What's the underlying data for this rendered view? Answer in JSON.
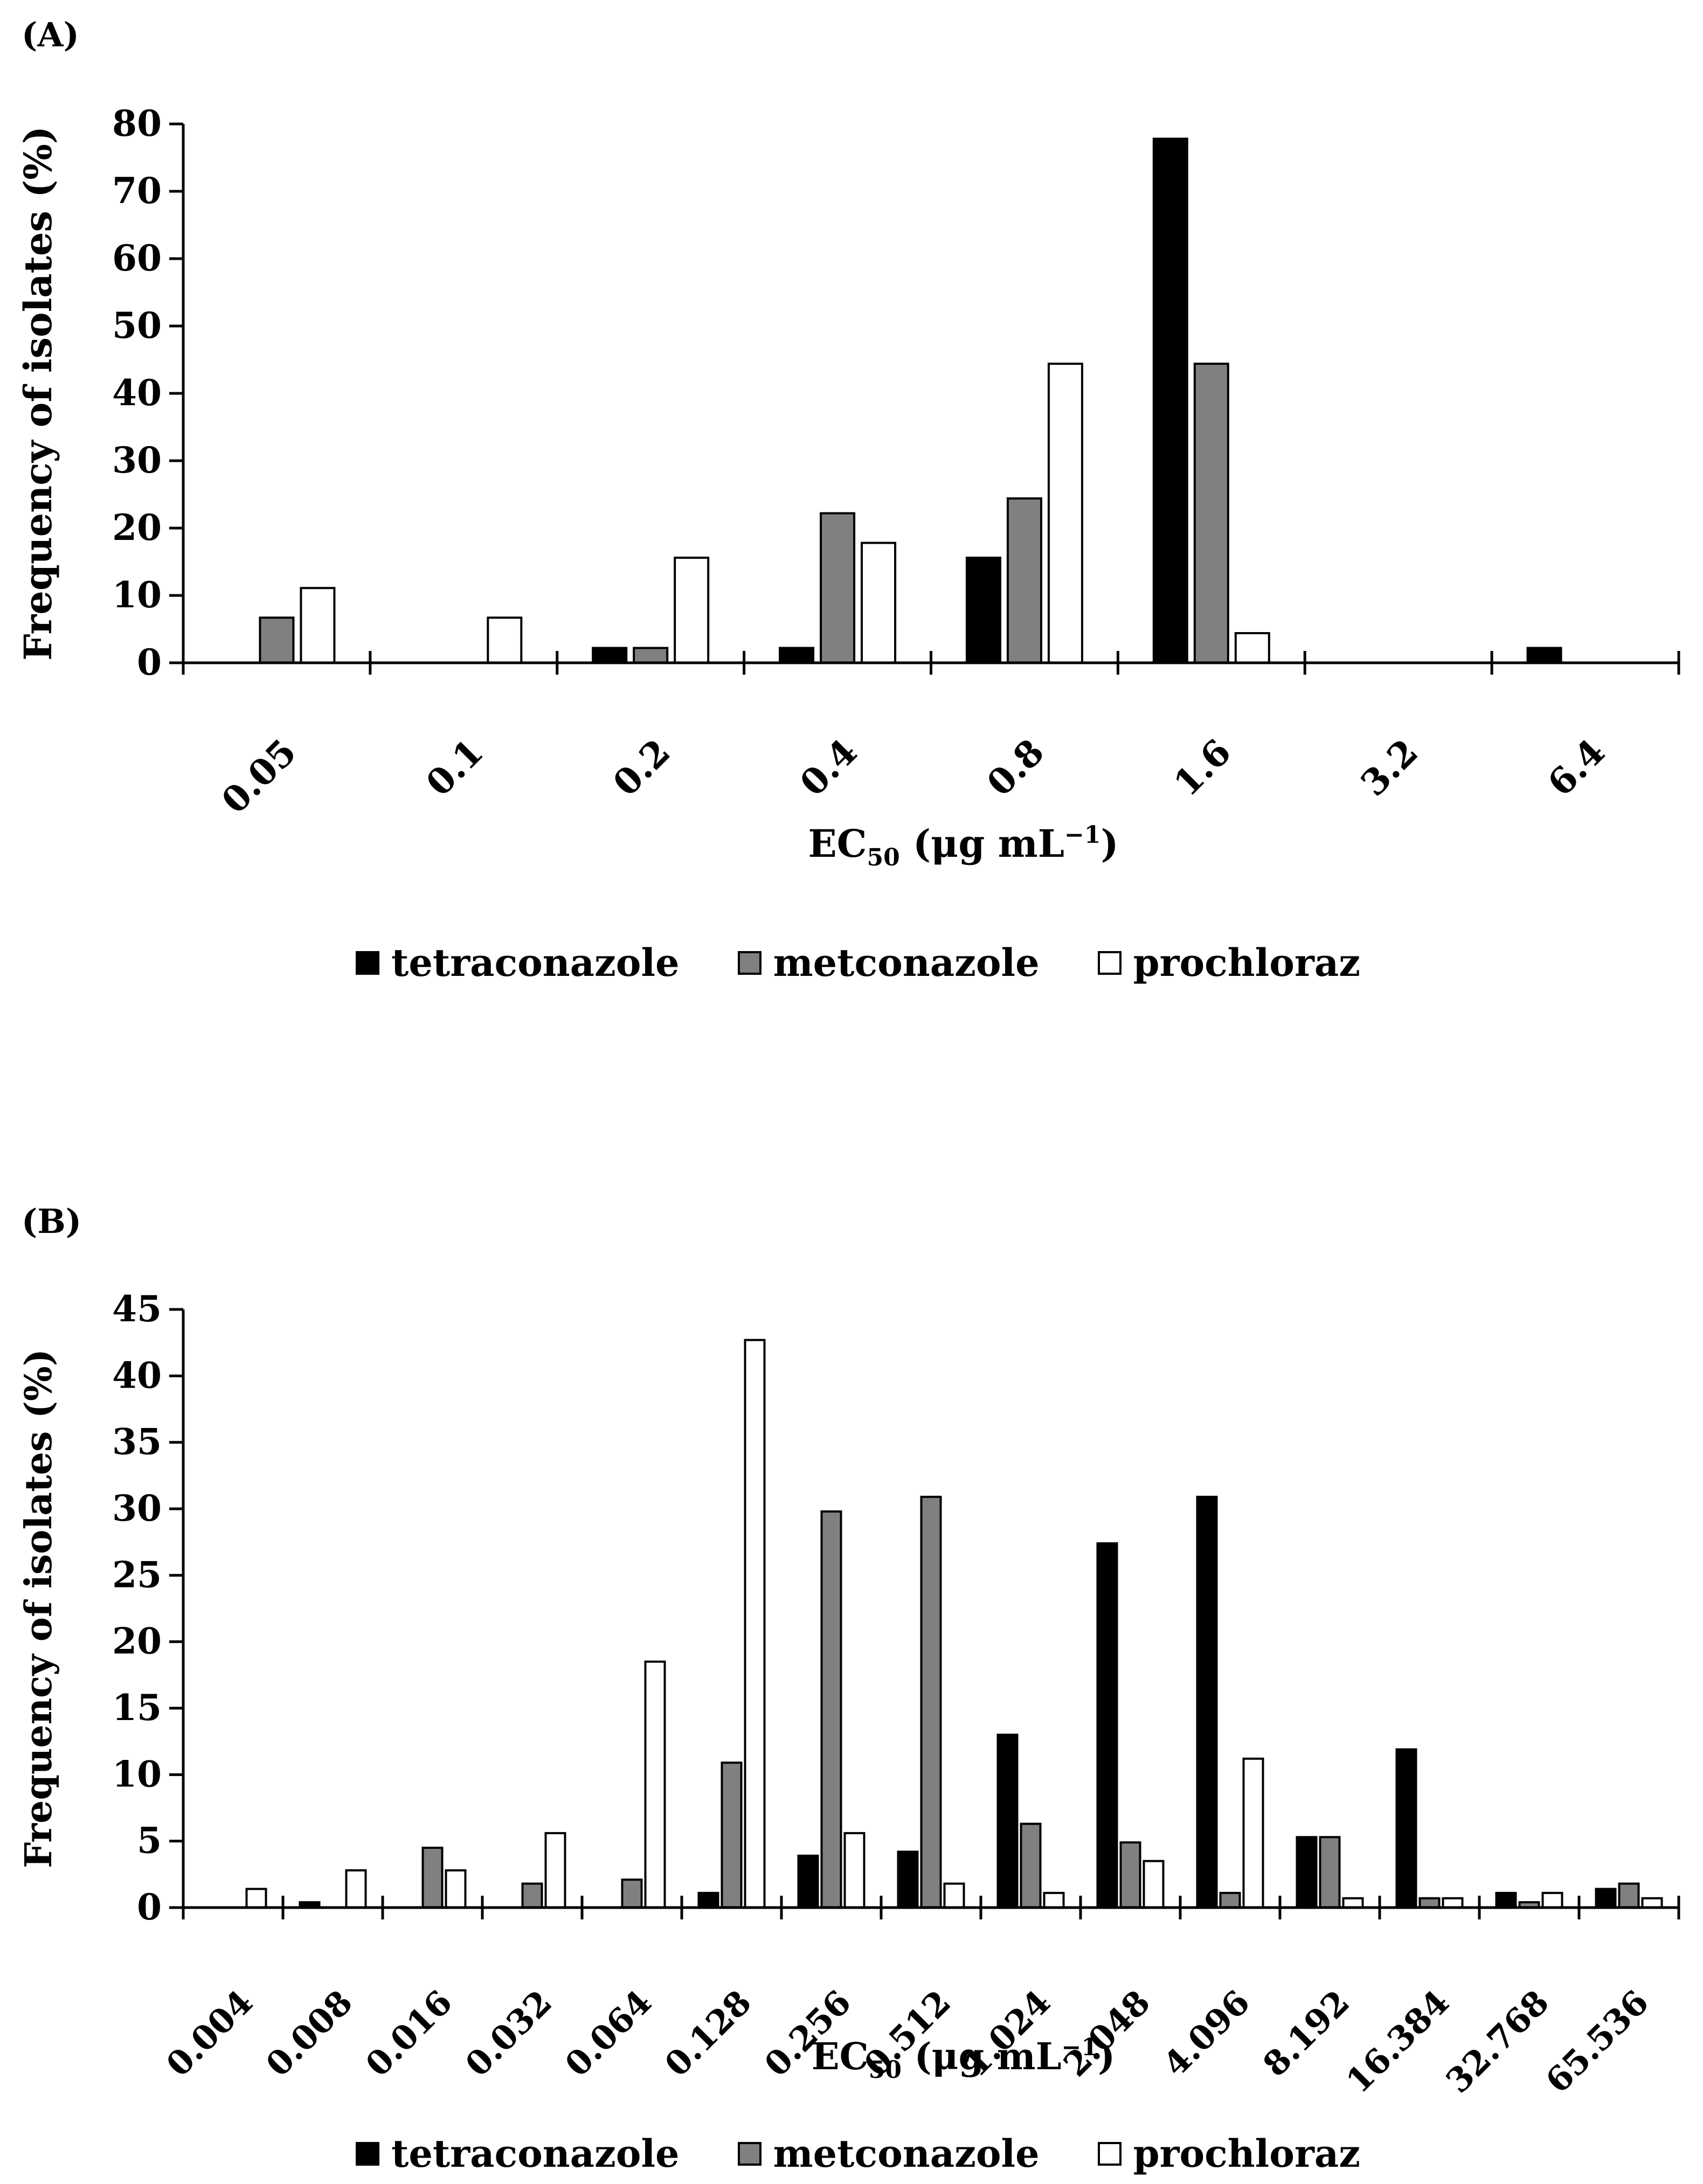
{
  "colors": {
    "tetraconazole": "#000000",
    "metconazole": "#808080",
    "prochloraz": "#ffffff",
    "axis": "#000000"
  },
  "panels": [
    {
      "label": "(A)"
    },
    {
      "label": "(B)"
    }
  ],
  "legend": [
    "tetraconazole",
    "metconazole",
    "prochloraz"
  ],
  "chart_data": [
    {
      "type": "bar",
      "title": "(A)",
      "xlabel_main": "EC",
      "xlabel_sub": "50",
      "xlabel_rest": " (μg mL",
      "xlabel_sup": "−1",
      "xlabel_end": ")",
      "ylabel": "Frequency of isolates (%)",
      "ylim": [
        0,
        80
      ],
      "ytick_step": 10,
      "categories": [
        "0.05",
        "0.1",
        "0.2",
        "0.4",
        "0.8",
        "1.6",
        "3.2",
        "6.4"
      ],
      "series": [
        {
          "name": "tetraconazole",
          "values": [
            0,
            0,
            2.2,
            2.2,
            15.6,
            77.8,
            0,
            2.2
          ]
        },
        {
          "name": "metconazole",
          "values": [
            6.7,
            0,
            2.2,
            22.2,
            24.4,
            44.4,
            0,
            0
          ]
        },
        {
          "name": "prochloraz",
          "values": [
            11.1,
            6.7,
            15.6,
            17.8,
            44.4,
            4.4,
            0,
            0
          ]
        }
      ]
    },
    {
      "type": "bar",
      "title": "(B)",
      "xlabel_main": "EC",
      "xlabel_sub": "50",
      "xlabel_rest": " (μg mL",
      "xlabel_sup": "−1",
      "xlabel_end": ")",
      "ylabel": "Frequency of isolates (%)",
      "ylim": [
        0,
        45
      ],
      "ytick_step": 5,
      "categories": [
        "0.004",
        "0.008",
        "0.016",
        "0.032",
        "0.064",
        "0.128",
        "0.256",
        "0.512",
        "1.024",
        "2.048",
        "4.096",
        "8.192",
        "16.384",
        "32.768",
        "65.536"
      ],
      "series": [
        {
          "name": "tetraconazole",
          "values": [
            0,
            0.4,
            0,
            0,
            0,
            1.1,
            3.9,
            4.2,
            13.0,
            27.4,
            30.9,
            5.3,
            11.9,
            1.1,
            1.4
          ]
        },
        {
          "name": "metconazole",
          "values": [
            0,
            0,
            4.5,
            1.8,
            2.1,
            10.9,
            29.8,
            30.9,
            6.3,
            4.9,
            1.1,
            5.3,
            0.7,
            0.4,
            1.8
          ]
        },
        {
          "name": "prochloraz",
          "values": [
            1.4,
            2.8,
            2.8,
            5.6,
            18.5,
            42.7,
            5.6,
            1.8,
            1.1,
            3.5,
            11.2,
            0.7,
            0.7,
            1.1,
            0.7
          ]
        }
      ]
    }
  ]
}
